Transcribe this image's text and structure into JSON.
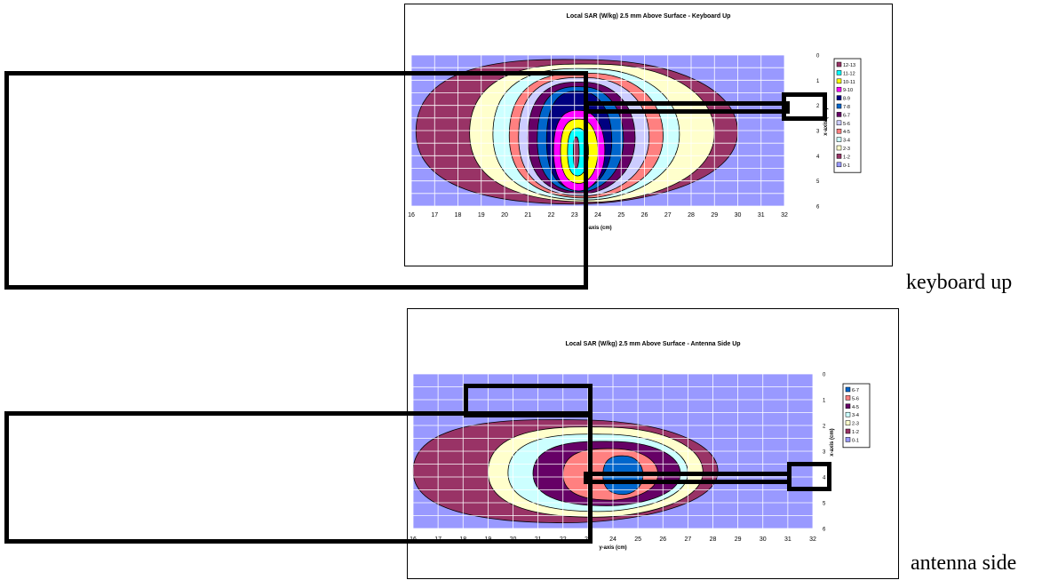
{
  "captions": {
    "first": "keyboard up",
    "second": "antenna side"
  },
  "colors": {
    "background_region": "#9999ff",
    "grid": "#ffffff",
    "keyboard_levels": [
      "#9999ff",
      "#993366",
      "#ffffcc",
      "#ccffff",
      "#ff8080",
      "#ccccff",
      "#660066",
      "#0066cc",
      "#000080",
      "#ff00ff",
      "#ffff00",
      "#00ffff",
      "#993366"
    ],
    "antenna_levels": [
      "#9999ff",
      "#993366",
      "#ffffcc",
      "#ccffff",
      "#660066",
      "#ff8080",
      "#0066cc"
    ]
  },
  "chart_data": [
    {
      "type": "heatmap",
      "title": "Local SAR (W/kg) 2.5 mm Above Surface - Keyboard Up",
      "xlabel": "y-axis (cm)",
      "ylabel": "x-axis (cm)",
      "x_ticks": [
        "16",
        "17",
        "18",
        "19",
        "20",
        "21",
        "22",
        "23",
        "24",
        "25",
        "26",
        "27",
        "28",
        "29",
        "30",
        "31",
        "32"
      ],
      "y_ticks": [
        "0",
        "1",
        "2",
        "3",
        "4",
        "5",
        "6"
      ],
      "xlim": [
        16,
        32
      ],
      "ylim": [
        0,
        6
      ],
      "legend": [
        "12-13",
        "11-12",
        "10-11",
        "9-10",
        "8-9",
        "7-8",
        "6-7",
        "5-6",
        "4-5",
        "3-4",
        "2-3",
        "1-2",
        "0-1"
      ],
      "legend_position": "right",
      "grid": true,
      "peak": {
        "y_cm": 23,
        "x_cm": 4,
        "value_range": "12-13"
      },
      "contours_outer_to_inner": [
        {
          "level": "0-1",
          "left": 16,
          "right": 32
        },
        {
          "level": "1-2",
          "left": 16.2,
          "right": 30
        },
        {
          "level": "2-3",
          "left": 18.5,
          "right": 29
        },
        {
          "level": "3-4",
          "left": 19.5,
          "right": 27.5
        },
        {
          "level": "4-5",
          "left": 20.2,
          "right": 26.8
        },
        {
          "level": "5-6",
          "left": 20.6,
          "right": 26.2
        },
        {
          "level": "6-7",
          "left": 21,
          "right": 25.6
        },
        {
          "level": "7-8",
          "left": 21.4,
          "right": 25.1
        },
        {
          "level": "8-9",
          "left": 21.8,
          "right": 24.6
        },
        {
          "level": "9-10",
          "left": 22.1,
          "right": 24.3
        },
        {
          "level": "10-11",
          "left": 22.4,
          "right": 24
        },
        {
          "level": "11-12",
          "left": 22.7,
          "right": 23.6
        },
        {
          "level": "12-13",
          "left": 22.95,
          "right": 23.2
        }
      ]
    },
    {
      "type": "heatmap",
      "title": "Local SAR (W/kg) 2.5 mm Above Surface - Antenna Side Up",
      "xlabel": "y-axis (cm)",
      "ylabel": "x-axis (cm)",
      "x_ticks": [
        "16",
        "17",
        "18",
        "19",
        "20",
        "21",
        "22",
        "23",
        "24",
        "25",
        "26",
        "27",
        "28",
        "29",
        "30",
        "31",
        "32"
      ],
      "y_ticks": [
        "0",
        "1",
        "2",
        "3",
        "4",
        "5",
        "6"
      ],
      "xlim": [
        16,
        32
      ],
      "ylim": [
        0,
        6
      ],
      "legend": [
        "6-7",
        "5-6",
        "4-5",
        "3-4",
        "2-3",
        "1-2",
        "0-1"
      ],
      "legend_position": "right",
      "grid": true,
      "peak": {
        "y_cm": 24.5,
        "x_cm": 4.2,
        "value_range": "6-7"
      },
      "contours_outer_to_inner": [
        {
          "level": "0-1",
          "left": 16,
          "right": 32
        },
        {
          "level": "1-2",
          "left": 16,
          "right": 28.2
        },
        {
          "level": "2-3",
          "left": 19,
          "right": 27.6
        },
        {
          "level": "3-4",
          "left": 19.8,
          "right": 27
        },
        {
          "level": "4-5",
          "left": 20.8,
          "right": 26.7
        },
        {
          "level": "5-6",
          "left": 22,
          "right": 25.8
        },
        {
          "level": "6-7",
          "left": 23.6,
          "right": 25.2
        }
      ]
    }
  ]
}
